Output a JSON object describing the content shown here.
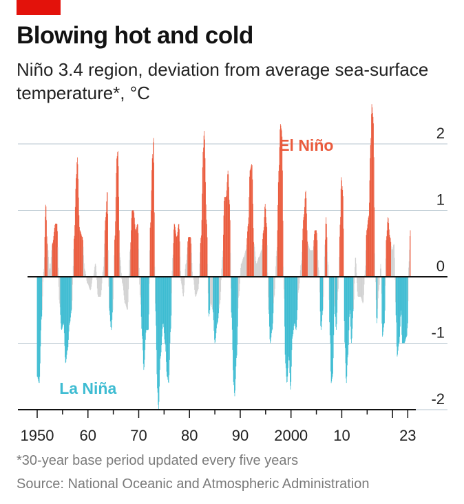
{
  "header": {
    "title": "Blowing hot and cold",
    "subtitle": "Niño 3.4 region, deviation from average sea-surface temperature*, °C"
  },
  "footer": {
    "footnote": "*30-year base period updated every five years",
    "source": "Source: National Oceanic and Atmospheric Administration"
  },
  "colors": {
    "accent_tab": "#e3120b",
    "el_nino": "#ea5b3d",
    "la_nina": "#3ebcd2",
    "neutral": "#d2d2d2",
    "grid": "#b7c6cf",
    "axis": "#121212"
  },
  "chart_data": {
    "type": "bar",
    "title": "Blowing hot and cold",
    "subtitle": "Niño 3.4 region, deviation from average sea-surface temperature*, °C",
    "xlim": [
      1950,
      2023.5
    ],
    "ylim": [
      -2,
      2.5
    ],
    "y_ticks": [
      {
        "value": 2,
        "label": "2"
      },
      {
        "value": 1,
        "label": "1"
      },
      {
        "value": 0,
        "label": "0"
      },
      {
        "value": -1,
        "label": "-1"
      },
      {
        "value": -2,
        "label": "-2"
      }
    ],
    "x_ticks": [
      {
        "value": 1950,
        "label": "1950"
      },
      {
        "value": 1960,
        "label": "60"
      },
      {
        "value": 1970,
        "label": "70"
      },
      {
        "value": 1980,
        "label": "80"
      },
      {
        "value": 1990,
        "label": "90"
      },
      {
        "value": 2000,
        "label": "2000"
      },
      {
        "value": 2010,
        "label": "10"
      },
      {
        "value": 2023,
        "label": "23"
      }
    ],
    "threshold": 0.5,
    "annotations": [
      {
        "text": "El Niño",
        "x": 2003,
        "y": 1.98,
        "series": "el_nino"
      },
      {
        "text": "La Niña",
        "x": 1960,
        "y": -1.68,
        "series": "la_nina"
      }
    ],
    "key_points": [
      [
        1950.0,
        -1.5
      ],
      [
        1950.4,
        -1.6
      ],
      [
        1950.9,
        -0.6
      ],
      [
        1951.3,
        0.1
      ],
      [
        1951.7,
        1.1
      ],
      [
        1952.0,
        0.5
      ],
      [
        1952.5,
        0.1
      ],
      [
        1953.0,
        0.5
      ],
      [
        1953.6,
        0.8
      ],
      [
        1953.9,
        0.8
      ],
      [
        1954.4,
        -0.4
      ],
      [
        1954.8,
        -0.8
      ],
      [
        1955.2,
        -0.7
      ],
      [
        1955.6,
        -1.3
      ],
      [
        1956.0,
        -1.1
      ],
      [
        1956.4,
        -0.7
      ],
      [
        1956.8,
        -0.5
      ],
      [
        1957.3,
        0.6
      ],
      [
        1957.7,
        1.5
      ],
      [
        1957.9,
        1.8
      ],
      [
        1958.4,
        0.7
      ],
      [
        1958.9,
        0.6
      ],
      [
        1959.4,
        0.1
      ],
      [
        1959.9,
        -0.1
      ],
      [
        1960.5,
        -0.2
      ],
      [
        1961.0,
        0.0
      ],
      [
        1961.5,
        0.2
      ],
      [
        1962.0,
        -0.3
      ],
      [
        1962.5,
        -0.3
      ],
      [
        1963.0,
        0.1
      ],
      [
        1963.5,
        0.9
      ],
      [
        1963.8,
        1.3
      ],
      [
        1964.2,
        -0.5
      ],
      [
        1964.6,
        -0.8
      ],
      [
        1964.9,
        -0.5
      ],
      [
        1965.3,
        0.6
      ],
      [
        1965.7,
        1.8
      ],
      [
        1965.9,
        1.9
      ],
      [
        1966.3,
        0.3
      ],
      [
        1966.8,
        -0.1
      ],
      [
        1967.3,
        -0.4
      ],
      [
        1967.8,
        -0.5
      ],
      [
        1968.3,
        0.4
      ],
      [
        1968.7,
        1.0
      ],
      [
        1969.0,
        1.0
      ],
      [
        1969.4,
        0.7
      ],
      [
        1969.8,
        0.8
      ],
      [
        1970.3,
        -0.3
      ],
      [
        1970.7,
        -0.9
      ],
      [
        1971.0,
        -1.4
      ],
      [
        1971.5,
        -0.8
      ],
      [
        1971.9,
        -0.8
      ],
      [
        1972.3,
        0.8
      ],
      [
        1972.7,
        1.8
      ],
      [
        1972.9,
        2.1
      ],
      [
        1973.3,
        -0.5
      ],
      [
        1973.7,
        -1.7
      ],
      [
        1973.9,
        -2.0
      ],
      [
        1974.3,
        -1.2
      ],
      [
        1974.8,
        -0.7
      ],
      [
        1975.2,
        -1.0
      ],
      [
        1975.6,
        -1.5
      ],
      [
        1975.9,
        -1.6
      ],
      [
        1976.3,
        -0.8
      ],
      [
        1976.7,
        0.3
      ],
      [
        1977.0,
        0.8
      ],
      [
        1977.5,
        0.6
      ],
      [
        1977.9,
        0.8
      ],
      [
        1978.4,
        -0.1
      ],
      [
        1978.8,
        -0.3
      ],
      [
        1979.3,
        0.2
      ],
      [
        1979.8,
        0.6
      ],
      [
        1980.2,
        0.6
      ],
      [
        1980.7,
        0.0
      ],
      [
        1981.2,
        -0.3
      ],
      [
        1981.7,
        -0.2
      ],
      [
        1982.3,
        0.6
      ],
      [
        1982.7,
        1.9
      ],
      [
        1982.9,
        2.2
      ],
      [
        1983.4,
        0.8
      ],
      [
        1983.8,
        -0.6
      ],
      [
        1984.2,
        -0.4
      ],
      [
        1984.6,
        -0.5
      ],
      [
        1985.0,
        -1.0
      ],
      [
        1985.5,
        -0.7
      ],
      [
        1986.0,
        -0.4
      ],
      [
        1986.5,
        0.3
      ],
      [
        1986.9,
        1.2
      ],
      [
        1987.2,
        1.2
      ],
      [
        1987.6,
        1.6
      ],
      [
        1987.9,
        1.1
      ],
      [
        1988.3,
        -0.6
      ],
      [
        1988.7,
        -1.6
      ],
      [
        1988.9,
        -1.8
      ],
      [
        1989.3,
        -1.2
      ],
      [
        1989.7,
        -0.3
      ],
      [
        1990.2,
        0.2
      ],
      [
        1990.7,
        0.3
      ],
      [
        1991.1,
        0.4
      ],
      [
        1991.6,
        0.8
      ],
      [
        1991.9,
        1.6
      ],
      [
        1992.3,
        1.7
      ],
      [
        1992.7,
        0.5
      ],
      [
        1993.2,
        0.2
      ],
      [
        1993.7,
        0.3
      ],
      [
        1994.2,
        0.4
      ],
      [
        1994.6,
        0.7
      ],
      [
        1994.9,
        1.1
      ],
      [
        1995.2,
        0.8
      ],
      [
        1995.6,
        -0.5
      ],
      [
        1995.9,
        -1.0
      ],
      [
        1996.3,
        -0.8
      ],
      [
        1996.7,
        -0.3
      ],
      [
        1997.2,
        0.4
      ],
      [
        1997.6,
        1.6
      ],
      [
        1997.9,
        2.3
      ],
      [
        1998.2,
        2.2
      ],
      [
        1998.6,
        -0.2
      ],
      [
        1998.9,
        -1.3
      ],
      [
        1999.2,
        -1.6
      ],
      [
        1999.6,
        -1.2
      ],
      [
        1999.9,
        -1.7
      ],
      [
        2000.3,
        -0.9
      ],
      [
        2000.7,
        -0.7
      ],
      [
        2001.0,
        -0.8
      ],
      [
        2001.5,
        -0.2
      ],
      [
        2002.0,
        0.2
      ],
      [
        2002.5,
        0.9
      ],
      [
        2002.9,
        1.3
      ],
      [
        2003.3,
        0.5
      ],
      [
        2003.8,
        0.4
      ],
      [
        2004.3,
        0.4
      ],
      [
        2004.7,
        0.7
      ],
      [
        2005.0,
        0.7
      ],
      [
        2005.5,
        0.1
      ],
      [
        2005.9,
        -0.8
      ],
      [
        2006.3,
        -0.5
      ],
      [
        2006.7,
        0.5
      ],
      [
        2006.9,
        0.9
      ],
      [
        2007.3,
        0.2
      ],
      [
        2007.7,
        -0.9
      ],
      [
        2007.9,
        -1.6
      ],
      [
        2008.2,
        -1.5
      ],
      [
        2008.6,
        -0.4
      ],
      [
        2008.9,
        -0.8
      ],
      [
        2009.3,
        -0.2
      ],
      [
        2009.7,
        0.8
      ],
      [
        2009.9,
        1.5
      ],
      [
        2010.2,
        1.3
      ],
      [
        2010.6,
        -1.0
      ],
      [
        2010.9,
        -1.6
      ],
      [
        2011.2,
        -1.2
      ],
      [
        2011.6,
        -0.5
      ],
      [
        2011.9,
        -1.0
      ],
      [
        2012.3,
        -0.5
      ],
      [
        2012.7,
        0.3
      ],
      [
        2013.2,
        -0.3
      ],
      [
        2013.7,
        -0.3
      ],
      [
        2014.2,
        -0.4
      ],
      [
        2014.6,
        0.1
      ],
      [
        2014.9,
        0.7
      ],
      [
        2015.3,
        0.9
      ],
      [
        2015.7,
        2.0
      ],
      [
        2015.9,
        2.6
      ],
      [
        2016.2,
        2.4
      ],
      [
        2016.6,
        0.0
      ],
      [
        2016.9,
        -0.7
      ],
      [
        2017.3,
        -0.2
      ],
      [
        2017.7,
        0.2
      ],
      [
        2018.0,
        -0.9
      ],
      [
        2018.4,
        -0.7
      ],
      [
        2018.8,
        0.6
      ],
      [
        2019.1,
        0.9
      ],
      [
        2019.5,
        0.6
      ],
      [
        2019.9,
        0.4
      ],
      [
        2020.3,
        0.5
      ],
      [
        2020.7,
        -0.6
      ],
      [
        2020.9,
        -1.2
      ],
      [
        2021.3,
        -1.0
      ],
      [
        2021.7,
        -0.5
      ],
      [
        2021.9,
        -1.0
      ],
      [
        2022.3,
        -1.0
      ],
      [
        2022.8,
        -0.9
      ],
      [
        2023.0,
        -0.7
      ],
      [
        2023.2,
        0.2
      ],
      [
        2023.5,
        0.7
      ]
    ]
  }
}
